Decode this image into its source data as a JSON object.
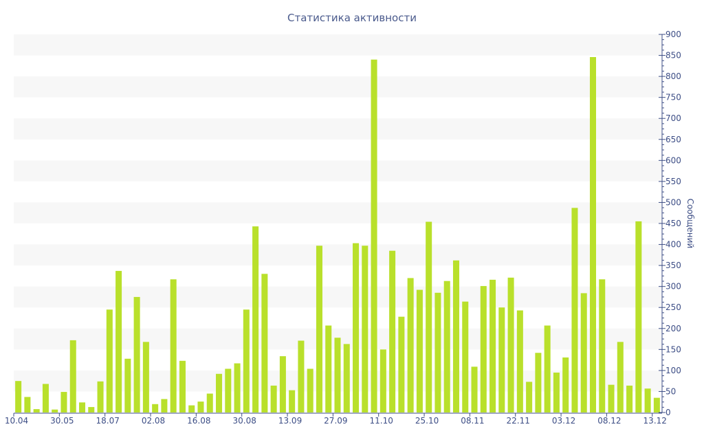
{
  "chart_data": {
    "type": "bar",
    "title": "Статистика активности",
    "xlabel": "",
    "ylabel": "Сообщений",
    "ylim": [
      0,
      900
    ],
    "yticks": [
      0,
      50,
      100,
      150,
      200,
      250,
      300,
      350,
      400,
      450,
      500,
      550,
      600,
      650,
      700,
      750,
      800,
      850,
      900
    ],
    "yaxis_position": "right",
    "grid": "alternating horizontal bands",
    "xtick_labels": [
      {
        "index": 0,
        "label": "10.04"
      },
      {
        "index": 5,
        "label": "30.05"
      },
      {
        "index": 10,
        "label": "18.07"
      },
      {
        "index": 15,
        "label": "02.08"
      },
      {
        "index": 20,
        "label": "16.08"
      },
      {
        "index": 25,
        "label": "30.08"
      },
      {
        "index": 30,
        "label": "13.09"
      },
      {
        "index": 35,
        "label": "27.09"
      },
      {
        "index": 40,
        "label": "11.10"
      },
      {
        "index": 45,
        "label": "25.10"
      },
      {
        "index": 50,
        "label": "08.11"
      },
      {
        "index": 55,
        "label": "22.11"
      },
      {
        "index": 60,
        "label": "03.12"
      },
      {
        "index": 65,
        "label": "08.12"
      },
      {
        "index": 70,
        "label": "13.12"
      }
    ],
    "values": [
      75,
      37,
      8,
      68,
      7,
      49,
      172,
      24,
      13,
      74,
      245,
      337,
      128,
      275,
      168,
      20,
      32,
      317,
      123,
      17,
      26,
      45,
      92,
      104,
      117,
      245,
      443,
      330,
      64,
      134,
      53,
      171,
      104,
      397,
      207,
      178,
      163,
      403,
      397,
      840,
      150,
      385,
      228,
      320,
      292,
      454,
      285,
      313,
      362,
      264,
      109,
      301,
      316,
      250,
      321,
      243,
      73,
      142,
      207,
      95,
      131,
      487,
      284,
      846,
      317,
      66,
      168,
      64,
      455,
      57,
      35
    ],
    "colors": {
      "bar": "#b9e02b",
      "band": "#f7f7f7",
      "axis": "#3c4d85",
      "title": "#4a5a8c"
    }
  }
}
